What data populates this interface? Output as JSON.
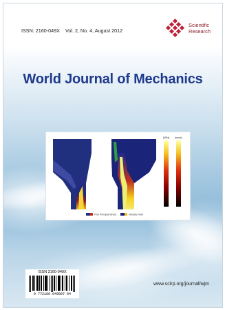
{
  "header": {
    "issn": "ISSN: 2160-049X",
    "volume": "Vol. 2, No. 4, August 2012"
  },
  "publisher": {
    "line1": "Scientific",
    "line2": "Research",
    "logo_color": "#c0203a"
  },
  "journal_title": "World Journal of Mechanics",
  "figure": {
    "legend_left": "First Principal Stress",
    "legend_right": "Velocity Field",
    "colorbar_left_label": "[MPa]",
    "colorbar_right_label": "[mm/s]"
  },
  "barcode": {
    "issn": "ISSN 2160-049X",
    "digits": "9  772160  049007  04"
  },
  "footer": {
    "website": "www.scirp.org/journal/wjm"
  },
  "colors": {
    "title": "#1f3a8c",
    "sky": "#8fbbd9"
  }
}
